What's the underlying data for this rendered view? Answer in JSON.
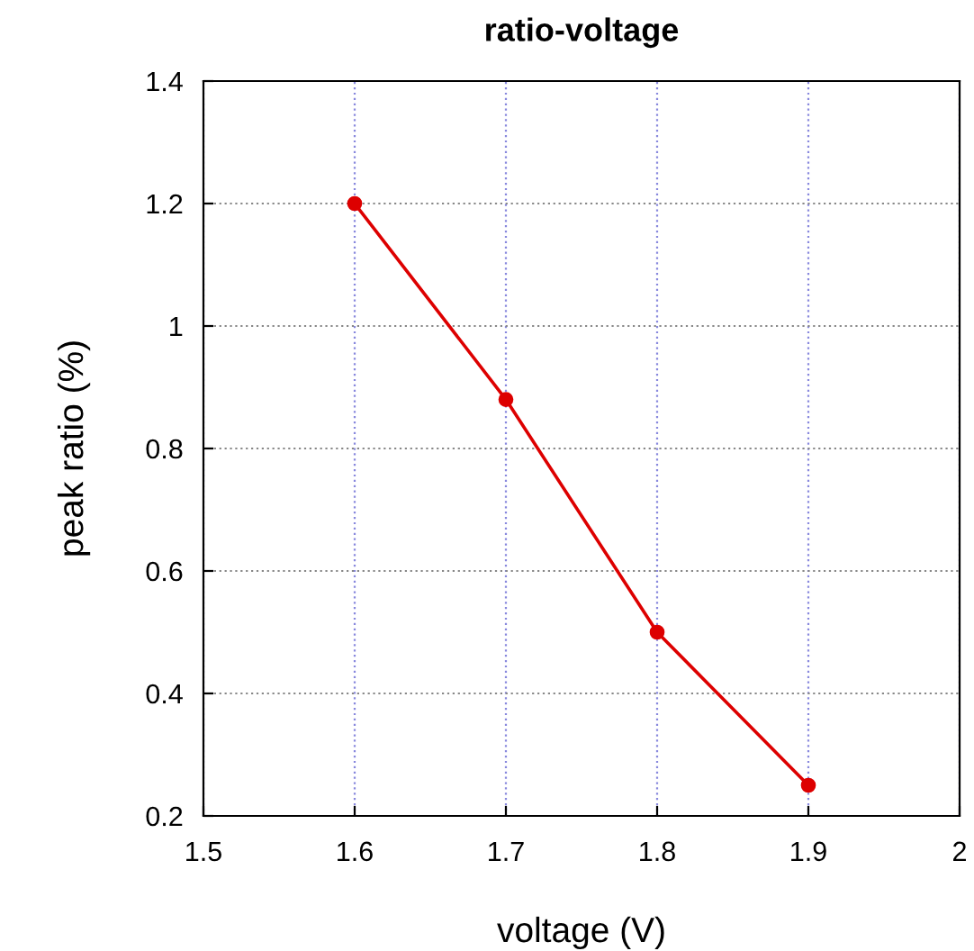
{
  "chart_data": {
    "type": "line",
    "title": "ratio-voltage",
    "xlabel": "voltage (V)",
    "ylabel": "peak ratio (%)",
    "x": [
      1.6,
      1.7,
      1.8,
      1.9
    ],
    "series": [
      {
        "color": "#dd0000",
        "values": [
          1.2,
          0.88,
          0.5,
          0.25
        ]
      }
    ],
    "xlim": [
      1.5,
      2
    ],
    "xticks": [
      1.5,
      1.6,
      1.7,
      1.8,
      1.9,
      2
    ],
    "ylim": [
      0.2,
      1.4
    ],
    "yticks": [
      0.2,
      0.4,
      0.6,
      0.8,
      1,
      1.2,
      1.4
    ],
    "grid": true,
    "marker": "circle",
    "line_style": "solid"
  }
}
